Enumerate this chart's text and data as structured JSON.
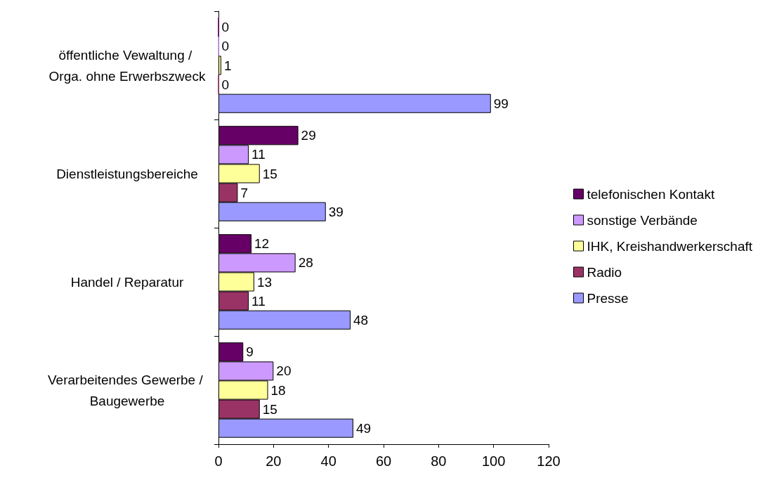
{
  "chart_data": {
    "type": "bar",
    "orientation": "horizontal",
    "categories": [
      "öffentliche Vewaltung / Orga. ohne Erwerbszweck",
      "Dienstleistungsbereiche",
      "Handel / Reparatur",
      "Verarbeitendes Gewerbe / Baugewerbe"
    ],
    "series": [
      {
        "name": "telefonischen Kontakt",
        "color": "#660066",
        "values": [
          0,
          29,
          12,
          9
        ]
      },
      {
        "name": "sonstige Verbände",
        "color": "#cc99ff",
        "values": [
          0,
          11,
          28,
          20
        ]
      },
      {
        "name": "IHK, Kreishandwerkerschaft",
        "color": "#ffff99",
        "values": [
          1,
          15,
          13,
          18
        ]
      },
      {
        "name": "Radio",
        "color": "#993366",
        "values": [
          0,
          7,
          11,
          15
        ]
      },
      {
        "name": "Presse",
        "color": "#9999ff",
        "values": [
          99,
          39,
          48,
          49
        ]
      }
    ],
    "xlim": [
      0,
      120
    ],
    "xticks": [
      0,
      20,
      40,
      60,
      80,
      100,
      120
    ],
    "grid": false,
    "legend": "right",
    "data_labels": true
  }
}
